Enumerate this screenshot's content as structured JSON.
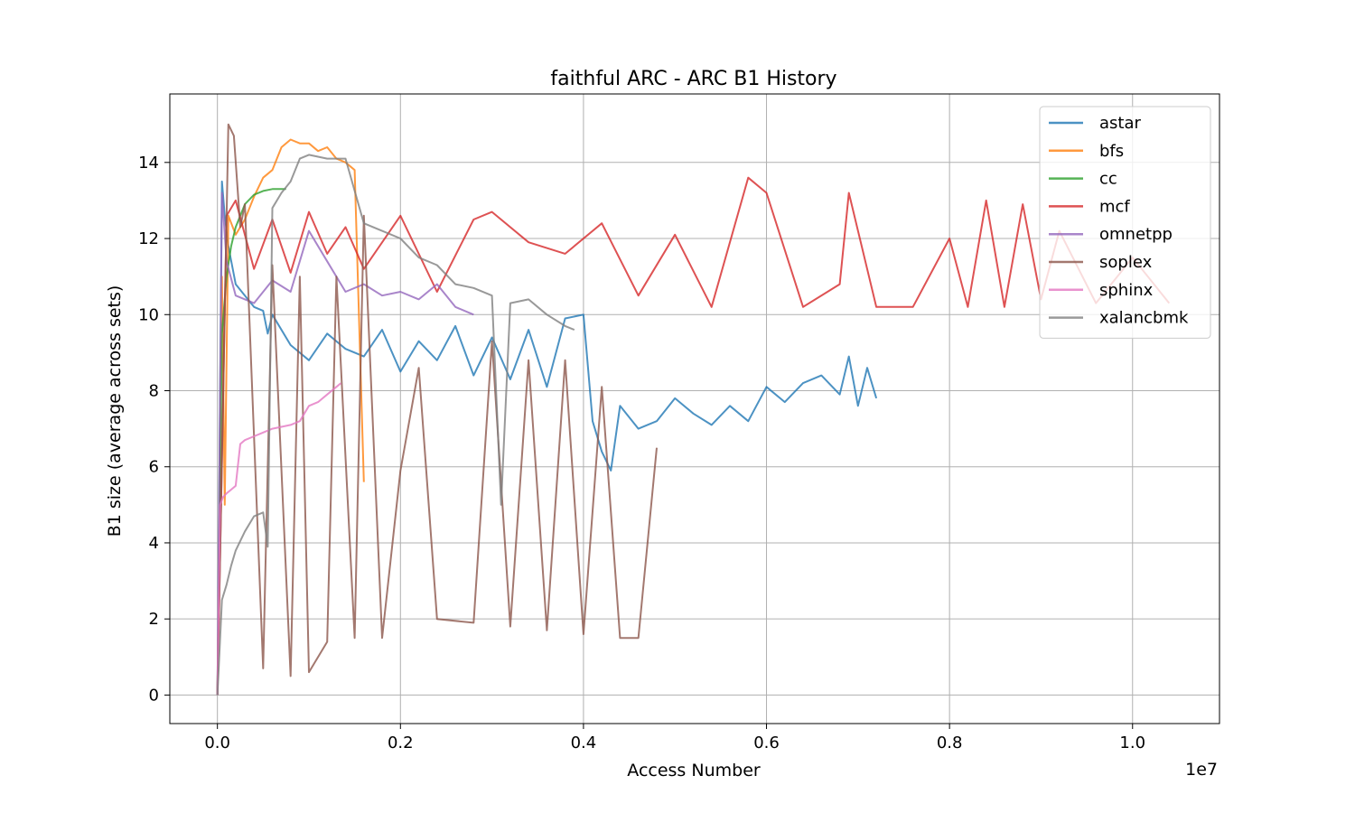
{
  "chart_data": {
    "type": "line",
    "title": "faithful ARC - ARC B1 History",
    "xlabel": "Access Number",
    "ylabel": "B1 size (average across sets)",
    "x_offset_label": "1e7",
    "x_scale_note": "x values are in units of 1e7 accesses",
    "xlim": [
      -0.052,
      1.095
    ],
    "ylim": [
      -0.75,
      15.8
    ],
    "xticks": [
      0.0,
      0.2,
      0.4,
      0.6,
      0.8,
      1.0
    ],
    "xtick_labels": [
      "0.0",
      "0.2",
      "0.4",
      "0.6",
      "0.8",
      "1.0"
    ],
    "yticks": [
      0,
      2,
      4,
      6,
      8,
      10,
      12,
      14
    ],
    "ytick_labels": [
      "0",
      "2",
      "4",
      "6",
      "8",
      "10",
      "12",
      "14"
    ],
    "grid": true,
    "legend_position": "top-right",
    "series": [
      {
        "name": "astar",
        "color": "#1f77b4",
        "x": [
          0.0,
          0.005,
          0.008,
          0.012,
          0.02,
          0.03,
          0.04,
          0.05,
          0.055,
          0.06,
          0.08,
          0.1,
          0.12,
          0.14,
          0.16,
          0.18,
          0.2,
          0.22,
          0.24,
          0.26,
          0.28,
          0.3,
          0.32,
          0.34,
          0.36,
          0.38,
          0.4,
          0.41,
          0.42,
          0.43,
          0.44,
          0.46,
          0.48,
          0.5,
          0.52,
          0.54,
          0.56,
          0.58,
          0.6,
          0.62,
          0.64,
          0.66,
          0.68,
          0.69,
          0.7,
          0.71,
          0.72
        ],
        "y": [
          0.0,
          13.5,
          12.6,
          11.8,
          10.8,
          10.5,
          10.2,
          10.1,
          9.5,
          10.0,
          9.2,
          8.8,
          9.5,
          9.1,
          8.9,
          9.6,
          8.5,
          9.3,
          8.8,
          9.7,
          8.4,
          9.4,
          8.3,
          9.6,
          8.1,
          9.9,
          10.0,
          7.2,
          6.4,
          5.9,
          7.6,
          7.0,
          7.2,
          7.8,
          7.4,
          7.1,
          7.6,
          7.2,
          8.1,
          7.7,
          8.2,
          8.4,
          7.9,
          8.9,
          7.6,
          8.6,
          7.8
        ]
      },
      {
        "name": "bfs",
        "color": "#ff7f0e",
        "x": [
          0.0,
          0.005,
          0.008,
          0.012,
          0.02,
          0.03,
          0.04,
          0.05,
          0.06,
          0.07,
          0.08,
          0.09,
          0.1,
          0.11,
          0.12,
          0.13,
          0.14,
          0.15,
          0.16
        ],
        "y": [
          0.0,
          11.0,
          5.0,
          12.6,
          12.1,
          12.5,
          13.1,
          13.6,
          13.8,
          14.4,
          14.6,
          14.5,
          14.5,
          14.3,
          14.4,
          14.1,
          14.0,
          13.8,
          5.6
        ]
      },
      {
        "name": "cc",
        "color": "#2ca02c",
        "x": [
          0.0,
          0.005,
          0.01,
          0.015,
          0.02,
          0.03,
          0.04,
          0.05,
          0.06,
          0.075
        ],
        "y": [
          0.0,
          9.5,
          11.0,
          11.8,
          12.3,
          12.9,
          13.15,
          13.25,
          13.3,
          13.3
        ]
      },
      {
        "name": "mcf",
        "color": "#d62728",
        "x": [
          0.0,
          0.01,
          0.02,
          0.04,
          0.06,
          0.08,
          0.1,
          0.12,
          0.14,
          0.16,
          0.2,
          0.24,
          0.28,
          0.3,
          0.34,
          0.38,
          0.42,
          0.46,
          0.5,
          0.54,
          0.58,
          0.6,
          0.64,
          0.68,
          0.69,
          0.72,
          0.76,
          0.8,
          0.82,
          0.84,
          0.86,
          0.88,
          0.9,
          0.92,
          0.96,
          1.0,
          1.04
        ],
        "y": [
          0.0,
          12.6,
          13.0,
          11.2,
          12.5,
          11.1,
          12.7,
          11.6,
          12.3,
          11.2,
          12.6,
          10.6,
          12.5,
          12.7,
          11.9,
          11.6,
          12.4,
          10.5,
          12.1,
          10.2,
          13.6,
          13.2,
          10.2,
          10.8,
          13.2,
          10.2,
          10.2,
          12.0,
          10.2,
          13.0,
          10.2,
          12.9,
          10.4,
          12.2,
          10.3,
          11.5,
          10.3
        ]
      },
      {
        "name": "omnetpp",
        "color": "#9467bd",
        "x": [
          0.0,
          0.005,
          0.01,
          0.02,
          0.04,
          0.06,
          0.08,
          0.1,
          0.12,
          0.14,
          0.16,
          0.18,
          0.2,
          0.22,
          0.24,
          0.26,
          0.28
        ],
        "y": [
          0.0,
          13.2,
          11.4,
          10.5,
          10.3,
          10.9,
          10.6,
          12.2,
          11.4,
          10.6,
          10.8,
          10.5,
          10.6,
          10.4,
          10.8,
          10.2,
          10.0
        ]
      },
      {
        "name": "soplex",
        "color": "#8c564b",
        "x": [
          0.0,
          0.012,
          0.018,
          0.025,
          0.03,
          0.05,
          0.06,
          0.08,
          0.09,
          0.1,
          0.12,
          0.13,
          0.15,
          0.16,
          0.18,
          0.2,
          0.22,
          0.24,
          0.28,
          0.3,
          0.32,
          0.34,
          0.36,
          0.38,
          0.4,
          0.42,
          0.44,
          0.46,
          0.48
        ],
        "y": [
          0.0,
          15.0,
          14.7,
          12.3,
          12.9,
          0.7,
          11.3,
          0.5,
          11.0,
          0.6,
          1.4,
          11.0,
          1.5,
          12.6,
          1.5,
          5.9,
          8.6,
          2.0,
          1.9,
          9.3,
          1.8,
          8.8,
          1.7,
          8.8,
          1.6,
          8.1,
          1.5,
          1.5,
          6.5
        ]
      },
      {
        "name": "sphinx",
        "color": "#e377c2",
        "x": [
          0.0,
          0.003,
          0.006,
          0.01,
          0.015,
          0.02,
          0.025,
          0.03,
          0.04,
          0.05,
          0.06,
          0.07,
          0.08,
          0.09,
          0.1,
          0.11,
          0.12,
          0.13,
          0.135
        ],
        "y": [
          0.0,
          5.0,
          5.2,
          5.3,
          5.4,
          5.5,
          6.6,
          6.7,
          6.8,
          6.9,
          7.0,
          7.05,
          7.1,
          7.2,
          7.6,
          7.7,
          7.9,
          8.1,
          8.2
        ]
      },
      {
        "name": "xalancbmk",
        "color": "#7f7f7f",
        "x": [
          0.0,
          0.005,
          0.01,
          0.015,
          0.02,
          0.03,
          0.04,
          0.05,
          0.055,
          0.06,
          0.07,
          0.08,
          0.09,
          0.1,
          0.12,
          0.14,
          0.16,
          0.18,
          0.2,
          0.22,
          0.24,
          0.26,
          0.28,
          0.3,
          0.31,
          0.32,
          0.34,
          0.36,
          0.38,
          0.39
        ],
        "y": [
          0.0,
          2.5,
          2.9,
          3.4,
          3.8,
          4.3,
          4.7,
          4.8,
          3.9,
          12.8,
          13.2,
          13.5,
          14.1,
          14.2,
          14.1,
          14.1,
          12.4,
          12.2,
          12.0,
          11.5,
          11.3,
          10.8,
          10.7,
          10.5,
          5.0,
          10.3,
          10.4,
          10.0,
          9.7,
          9.6
        ]
      }
    ]
  }
}
